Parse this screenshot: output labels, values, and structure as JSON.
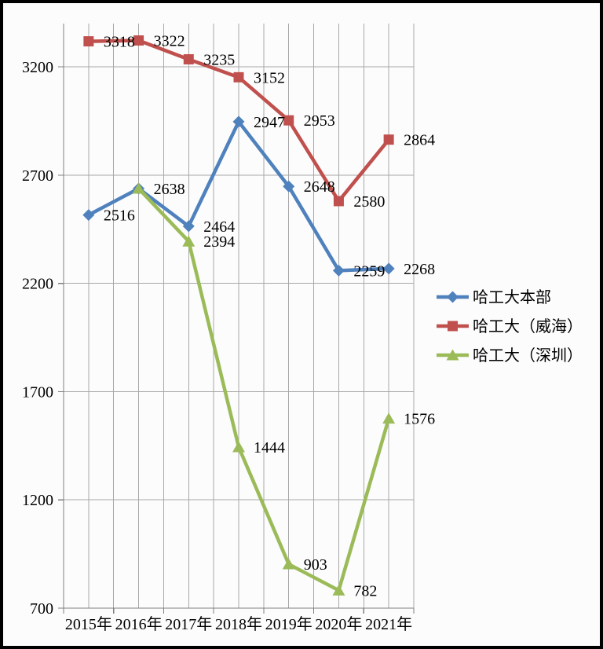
{
  "chart_data": {
    "type": "line",
    "categories": [
      "2015年",
      "2016年",
      "2017年",
      "2018年",
      "2019年",
      "2020年",
      "2021年"
    ],
    "series": [
      {
        "name": "哈工大本部",
        "color": "#4F81BD",
        "marker": "diamond",
        "values": [
          2516,
          2638,
          2464,
          2947,
          2648,
          2259,
          2268
        ],
        "labels": [
          "2516",
          "2638",
          "2464",
          "2947",
          "2648",
          "2259",
          "2268"
        ]
      },
      {
        "name": "哈工大（威海）",
        "color": "#C0504D",
        "marker": "square",
        "values": [
          3318,
          3322,
          3235,
          3152,
          2953,
          2580,
          2864
        ],
        "labels": [
          "3318",
          "3322",
          "3235",
          "3152",
          "2953",
          "2580",
          "2864"
        ]
      },
      {
        "name": "哈工大（深圳）",
        "color": "#9BBB59",
        "marker": "triangle",
        "values": [
          null,
          2638,
          2394,
          1444,
          903,
          782,
          1576
        ],
        "labels": [
          null,
          null,
          "2394",
          "1444",
          "903",
          "782",
          "1576"
        ]
      }
    ],
    "y_axis": {
      "min": 700,
      "max": 3400,
      "tick_interval": 500,
      "tick_labels": [
        "700",
        "1200",
        "1700",
        "2200",
        "2700",
        "3200"
      ]
    },
    "legend": {
      "position": "middle-right",
      "items": [
        "哈工大本部",
        "哈工大（威海）",
        "哈工大（深圳）"
      ]
    },
    "grid": {
      "horizontal": true,
      "vertical": true,
      "vertical_per_category": 2
    },
    "style_colors": {
      "gridline": "#A8A8A8",
      "axis": "#7F7F7F",
      "text": "#000000",
      "background": "#FCFCFC",
      "frame_border": "#000000"
    }
  }
}
